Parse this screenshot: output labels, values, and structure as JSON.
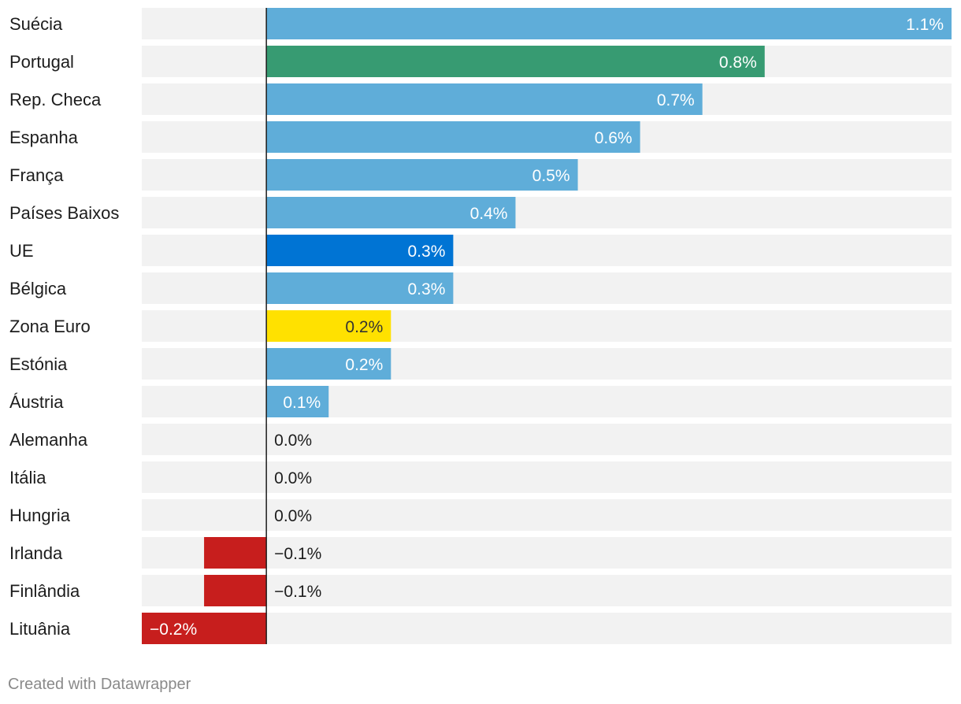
{
  "chart_data": {
    "type": "bar",
    "orientation": "horizontal",
    "unit": "%",
    "categories": [
      "Suécia",
      "Portugal",
      "Rep. Checa",
      "Espanha",
      "França",
      "Países Baixos",
      "UE",
      "Bélgica",
      "Zona Euro",
      "Estónia",
      "Áustria",
      "Alemanha",
      "Itália",
      "Hungria",
      "Irlanda",
      "Finlândia",
      "Lituânia"
    ],
    "values": [
      1.1,
      0.8,
      0.7,
      0.6,
      0.5,
      0.4,
      0.3,
      0.3,
      0.2,
      0.2,
      0.1,
      0.0,
      0.0,
      0.0,
      -0.1,
      -0.1,
      -0.2
    ],
    "value_labels": [
      "1.1%",
      "0.8%",
      "0.7%",
      "0.6%",
      "0.5%",
      "0.4%",
      "0.3%",
      "0.3%",
      "0.2%",
      "0.2%",
      "0.1%",
      "0.0%",
      "0.0%",
      "0.0%",
      "−0.1%",
      "−0.1%",
      "−0.2%"
    ],
    "colors": [
      "#5fadd9",
      "#379b72",
      "#5fadd9",
      "#5fadd9",
      "#5fadd9",
      "#5fadd9",
      "#0074d4",
      "#5fadd9",
      "#ffe100",
      "#5fadd9",
      "#5fadd9",
      "#5fadd9",
      "#5fadd9",
      "#5fadd9",
      "#c71e1d",
      "#c71e1d",
      "#c71e1d"
    ],
    "label_colors": [
      "#ffffff",
      "#ffffff",
      "#ffffff",
      "#ffffff",
      "#ffffff",
      "#ffffff",
      "#ffffff",
      "#ffffff",
      "#333333",
      "#ffffff",
      "#ffffff",
      "#1d1d1d",
      "#1d1d1d",
      "#1d1d1d",
      "#1d1d1d",
      "#1d1d1d",
      "#ffffff"
    ],
    "xlim": [
      -0.2,
      1.1
    ],
    "background_color": "#f2f2f2",
    "title": "",
    "xlabel": "",
    "ylabel": ""
  },
  "footer": {
    "credit": "Created with Datawrapper"
  }
}
